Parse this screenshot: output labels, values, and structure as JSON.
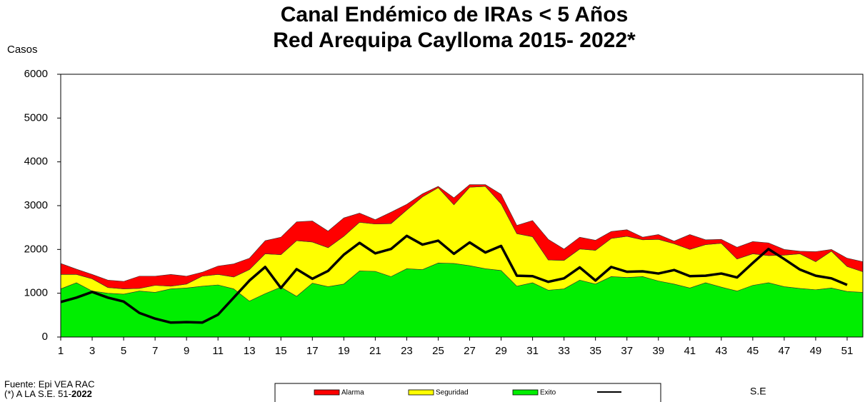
{
  "chart_data": {
    "type": "stacked_area",
    "title": [
      "Canal Endémico de IRAs < 5 Años",
      "Red Arequipa Caylloma 2015- 2022*"
    ],
    "y_label": "Casos",
    "x_label": "S.E",
    "source": "Fuente:  Epi VEA RAC",
    "note": [
      "(*) A LA S.E. 51-",
      "2022"
    ],
    "x": [
      1,
      2,
      3,
      4,
      5,
      6,
      7,
      8,
      9,
      10,
      11,
      12,
      13,
      14,
      15,
      16,
      17,
      18,
      19,
      20,
      21,
      22,
      23,
      24,
      25,
      26,
      27,
      28,
      29,
      30,
      31,
      32,
      33,
      34,
      35,
      36,
      37,
      38,
      39,
      40,
      41,
      42,
      43,
      44,
      45,
      46,
      47,
      48,
      49,
      50,
      51,
      52
    ],
    "xlim": [
      1,
      52
    ],
    "xticks": [
      1,
      3,
      5,
      7,
      9,
      11,
      13,
      15,
      17,
      19,
      21,
      23,
      25,
      27,
      29,
      31,
      33,
      35,
      37,
      39,
      41,
      43,
      45,
      47,
      49,
      51
    ],
    "ylim": [
      0,
      6000
    ],
    "yticks": [
      0,
      1000,
      2000,
      3000,
      4000,
      5000,
      6000
    ],
    "series": [
      {
        "name": "Exito",
        "color": "#00ee00",
        "values": [
          1100,
          1240,
          1050,
          1000,
          980,
          1050,
          1020,
          1100,
          1120,
          1160,
          1190,
          1100,
          820,
          990,
          1140,
          930,
          1230,
          1150,
          1210,
          1510,
          1500,
          1380,
          1560,
          1540,
          1690,
          1680,
          1630,
          1560,
          1520,
          1160,
          1240,
          1070,
          1100,
          1300,
          1210,
          1380,
          1360,
          1380,
          1280,
          1210,
          1120,
          1240,
          1140,
          1050,
          1180,
          1240,
          1150,
          1110,
          1080,
          1120,
          1040,
          1020
        ]
      },
      {
        "name": "Seguridad",
        "color": "#ffff00",
        "values": [
          330,
          190,
          280,
          130,
          120,
          60,
          160,
          60,
          90,
          230,
          240,
          270,
          720,
          910,
          740,
          1270,
          940,
          890,
          1090,
          1110,
          1080,
          1210,
          1340,
          1660,
          1720,
          1340,
          1790,
          1880,
          1520,
          1200,
          1050,
          690,
          650,
          710,
          770,
          870,
          940,
          840,
          950,
          920,
          880,
          870,
          1000,
          730,
          720,
          620,
          720,
          790,
          640,
          840,
          570,
          470
        ]
      },
      {
        "name": "Alarma",
        "color": "#ff0000",
        "values": [
          250,
          120,
          100,
          170,
          170,
          280,
          210,
          270,
          180,
          90,
          190,
          300,
          260,
          300,
          400,
          430,
          480,
          380,
          420,
          210,
          100,
          260,
          130,
          70,
          30,
          160,
          60,
          40,
          220,
          190,
          370,
          470,
          260,
          270,
          230,
          160,
          150,
          60,
          110,
          60,
          340,
          110,
          90,
          270,
          280,
          290,
          130,
          60,
          230,
          40,
          190,
          230
        ]
      }
    ],
    "line": {
      "color": "#000000",
      "values": [
        800,
        900,
        1030,
        900,
        810,
        550,
        420,
        330,
        340,
        330,
        510,
        900,
        1290,
        1600,
        1120,
        1550,
        1330,
        1510,
        1880,
        2150,
        1910,
        2010,
        2310,
        2110,
        2200,
        1900,
        2160,
        1930,
        2080,
        1400,
        1390,
        1260,
        1340,
        1590,
        1290,
        1600,
        1490,
        1500,
        1450,
        1530,
        1390,
        1400,
        1450,
        1360,
        1690,
        2010,
        1780,
        1540,
        1400,
        1340,
        1190,
        null
      ]
    }
  }
}
